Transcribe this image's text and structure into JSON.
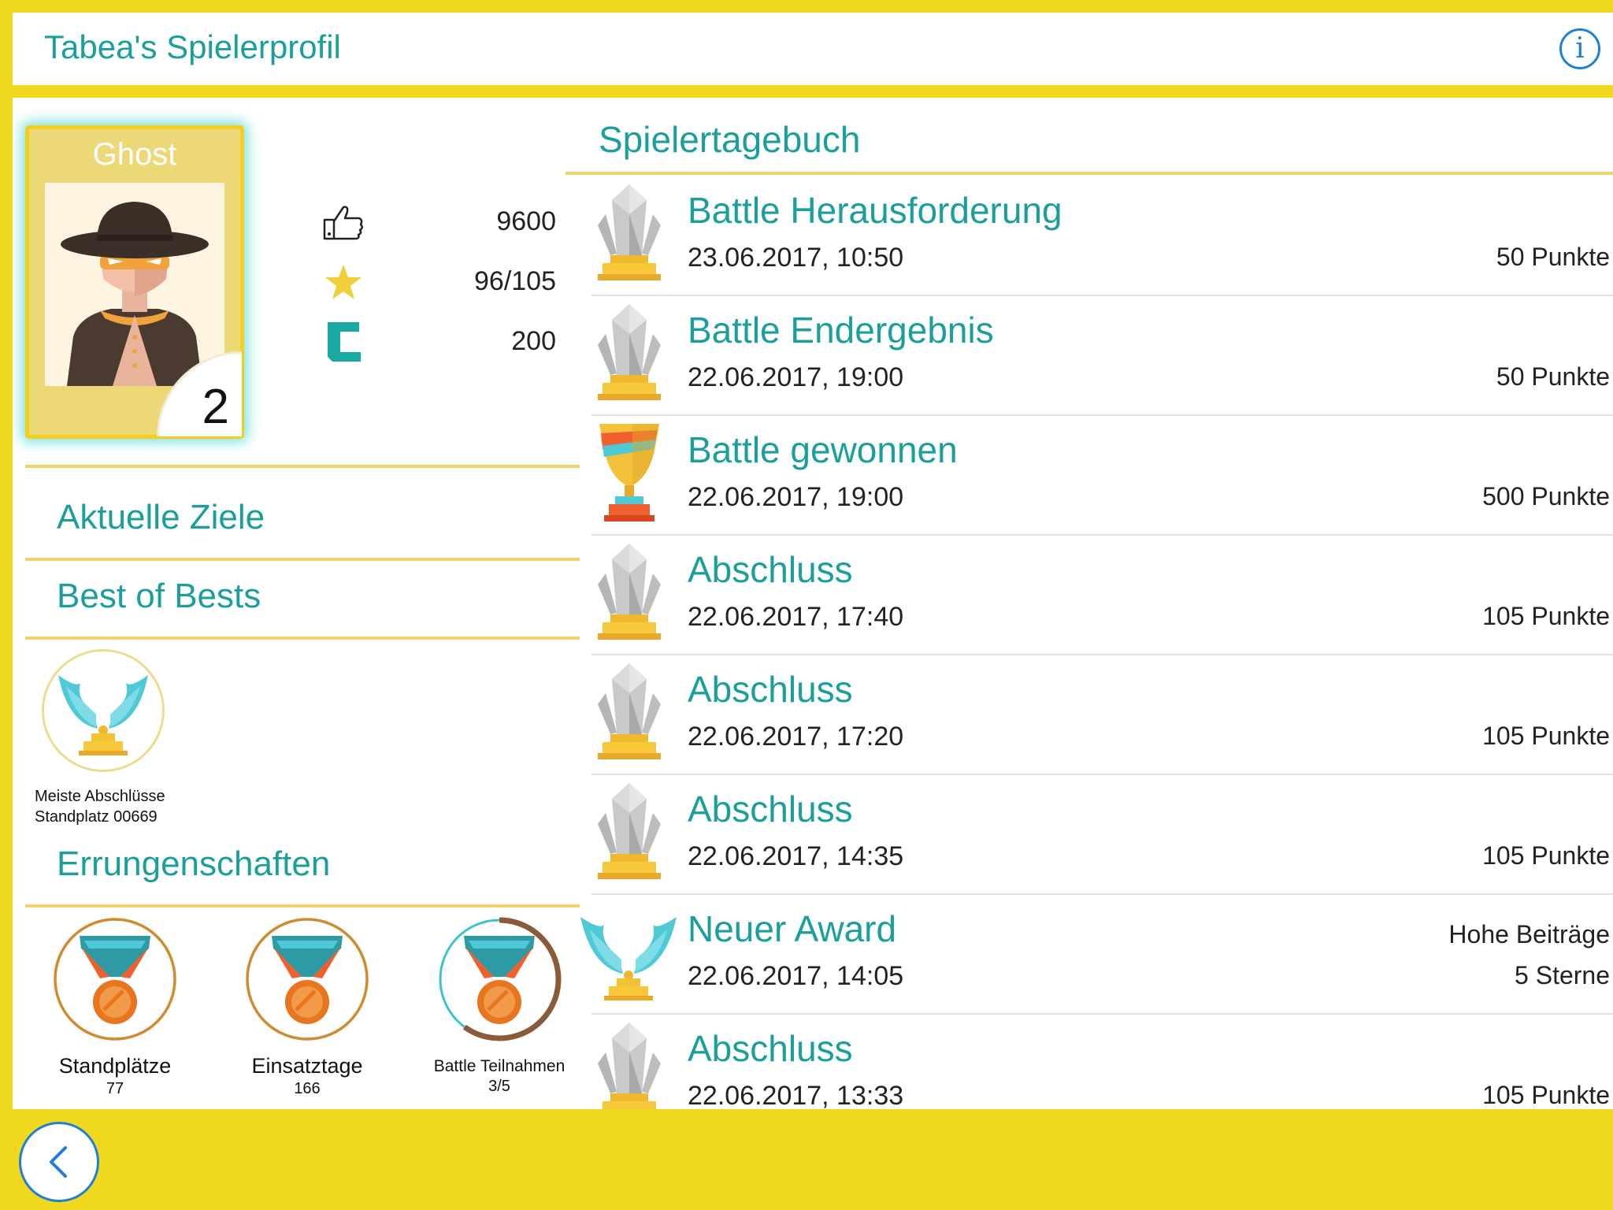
{
  "header": {
    "title": "Tabea's Spielerprofil",
    "info_icon": "i"
  },
  "profile": {
    "card_name": "Ghost",
    "rank": "2",
    "stats": [
      {
        "icon": "thumbs-up-icon",
        "value": "9600"
      },
      {
        "icon": "star-icon",
        "value": "96/105"
      },
      {
        "icon": "coin-c-icon",
        "value": "200"
      }
    ]
  },
  "sections": {
    "current_goals": "Aktuelle Ziele",
    "best_of_bests": "Best of Bests",
    "achievements": "Errungenschaften"
  },
  "best_of_bests": {
    "icon": "wings-trophy-icon",
    "line1": "Meiste Abschlüsse",
    "line2": "Standplatz 00669"
  },
  "achievements": [
    {
      "icon": "medal-icon",
      "title": "Standplätze",
      "value": "77",
      "progress": 1.0
    },
    {
      "icon": "medal-icon",
      "title": "Einsatztage",
      "value": "166",
      "progress": 1.0
    },
    {
      "icon": "medal-icon",
      "title": "Battle Teilnahmen",
      "value": "3/5",
      "progress": 0.6
    }
  ],
  "diary": {
    "title": "Spielertagebuch",
    "entries": [
      {
        "icon": "silver-crystal-trophy-icon",
        "title": "Battle Herausforderung",
        "date": "23.06.2017, 10:50",
        "points": "50 Punkte"
      },
      {
        "icon": "silver-crystal-trophy-icon",
        "title": "Battle Endergebnis",
        "date": "22.06.2017, 19:00",
        "points": "50 Punkte"
      },
      {
        "icon": "gold-cup-trophy-icon",
        "title": "Battle gewonnen",
        "date": "22.06.2017, 19:00",
        "points": "500 Punkte"
      },
      {
        "icon": "silver-crystal-trophy-icon",
        "title": "Abschluss",
        "date": "22.06.2017, 17:40",
        "points": "105 Punkte"
      },
      {
        "icon": "silver-crystal-trophy-icon",
        "title": "Abschluss",
        "date": "22.06.2017, 17:20",
        "points": "105 Punkte"
      },
      {
        "icon": "silver-crystal-trophy-icon",
        "title": "Abschluss",
        "date": "22.06.2017, 14:35",
        "points": "105 Punkte"
      },
      {
        "icon": "wings-trophy-icon",
        "title": "Neuer Award",
        "date": "22.06.2017, 14:05",
        "extra": "Hohe Beiträge",
        "points": "5 Sterne"
      },
      {
        "icon": "silver-crystal-trophy-icon",
        "title": "Abschluss",
        "date": "22.06.2017, 13:33",
        "points": "105 Punkte"
      }
    ]
  },
  "colors": {
    "accent": "#1a9f9a",
    "background": "#efd81e",
    "divider": "#f3d16f",
    "link": "#1d7fd6"
  },
  "nav": {
    "back_icon": "chevron-left-icon"
  }
}
